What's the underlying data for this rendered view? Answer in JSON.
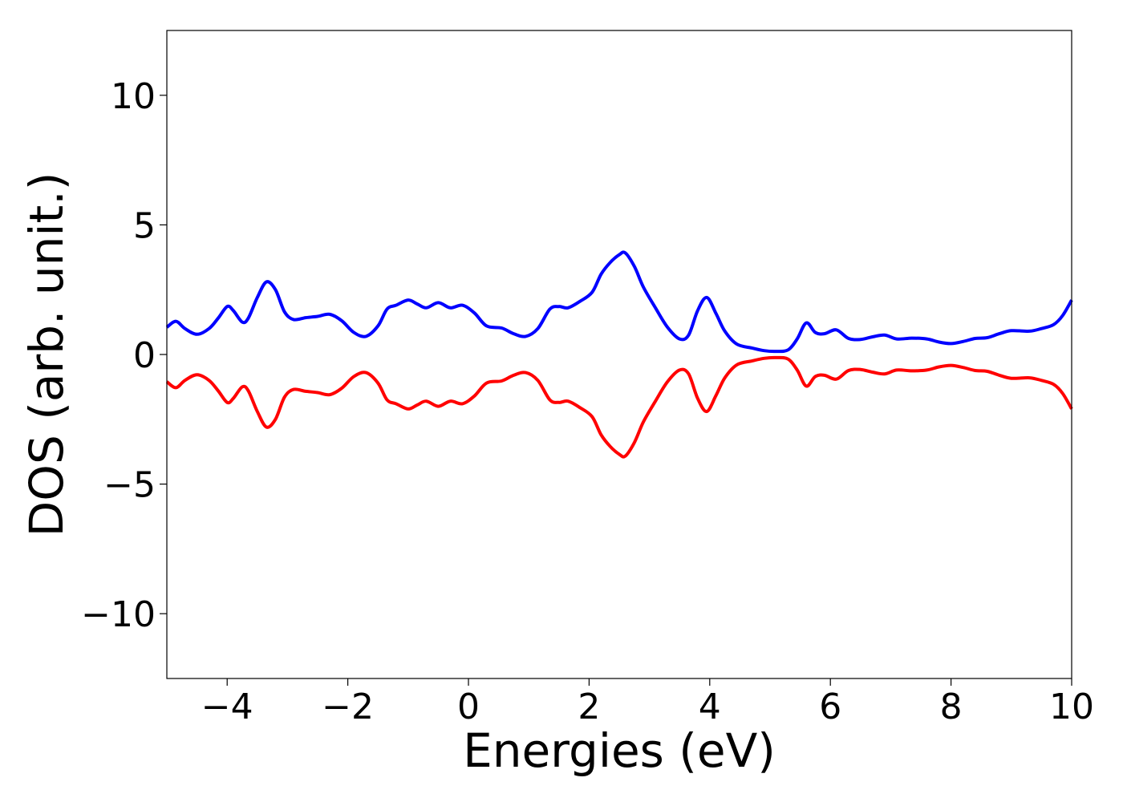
{
  "chart_data": {
    "type": "line",
    "title": "",
    "xlabel": "Energies (eV)",
    "ylabel": "DOS (arb. unit.)",
    "xlim": [
      -5,
      10
    ],
    "ylim": [
      -12.5,
      12.5
    ],
    "xticks": [
      {
        "value": -4,
        "label": "−4"
      },
      {
        "value": -2,
        "label": "−2"
      },
      {
        "value": 0,
        "label": "0"
      },
      {
        "value": 2,
        "label": "2"
      },
      {
        "value": 4,
        "label": "4"
      },
      {
        "value": 6,
        "label": "6"
      },
      {
        "value": 8,
        "label": "8"
      },
      {
        "value": 10,
        "label": "10"
      }
    ],
    "yticks": [
      {
        "value": 10,
        "label": "10"
      },
      {
        "value": 5,
        "label": "5"
      },
      {
        "value": 0,
        "label": "0"
      },
      {
        "value": -5,
        "label": "−5"
      },
      {
        "value": -10,
        "label": "−10"
      }
    ],
    "grid": false,
    "legend": "none",
    "series": [
      {
        "color": "#0000ff",
        "points": [
          [
            -5.0,
            1.05
          ],
          [
            -4.85,
            1.28
          ],
          [
            -4.7,
            1.0
          ],
          [
            -4.5,
            0.78
          ],
          [
            -4.3,
            1.0
          ],
          [
            -4.15,
            1.4
          ],
          [
            -4.0,
            1.85
          ],
          [
            -3.9,
            1.7
          ],
          [
            -3.75,
            1.25
          ],
          [
            -3.65,
            1.4
          ],
          [
            -3.5,
            2.2
          ],
          [
            -3.35,
            2.8
          ],
          [
            -3.2,
            2.5
          ],
          [
            -3.05,
            1.65
          ],
          [
            -2.9,
            1.35
          ],
          [
            -2.7,
            1.42
          ],
          [
            -2.5,
            1.47
          ],
          [
            -2.3,
            1.55
          ],
          [
            -2.1,
            1.3
          ],
          [
            -1.9,
            0.85
          ],
          [
            -1.7,
            0.7
          ],
          [
            -1.5,
            1.1
          ],
          [
            -1.35,
            1.75
          ],
          [
            -1.2,
            1.9
          ],
          [
            -1.0,
            2.1
          ],
          [
            -0.85,
            1.95
          ],
          [
            -0.7,
            1.8
          ],
          [
            -0.5,
            2.0
          ],
          [
            -0.3,
            1.8
          ],
          [
            -0.1,
            1.9
          ],
          [
            0.1,
            1.6
          ],
          [
            0.3,
            1.1
          ],
          [
            0.55,
            1.02
          ],
          [
            0.75,
            0.8
          ],
          [
            0.95,
            0.7
          ],
          [
            1.15,
            1.0
          ],
          [
            1.35,
            1.75
          ],
          [
            1.5,
            1.85
          ],
          [
            1.65,
            1.8
          ],
          [
            1.85,
            2.05
          ],
          [
            2.05,
            2.4
          ],
          [
            2.2,
            3.1
          ],
          [
            2.35,
            3.55
          ],
          [
            2.5,
            3.85
          ],
          [
            2.6,
            3.92
          ],
          [
            2.75,
            3.4
          ],
          [
            2.9,
            2.6
          ],
          [
            3.1,
            1.8
          ],
          [
            3.3,
            1.05
          ],
          [
            3.5,
            0.6
          ],
          [
            3.65,
            0.75
          ],
          [
            3.8,
            1.7
          ],
          [
            3.95,
            2.2
          ],
          [
            4.1,
            1.6
          ],
          [
            4.25,
            0.9
          ],
          [
            4.45,
            0.4
          ],
          [
            4.7,
            0.25
          ],
          [
            4.9,
            0.15
          ],
          [
            5.1,
            0.12
          ],
          [
            5.3,
            0.18
          ],
          [
            5.45,
            0.6
          ],
          [
            5.6,
            1.22
          ],
          [
            5.75,
            0.85
          ],
          [
            5.9,
            0.8
          ],
          [
            6.1,
            0.95
          ],
          [
            6.3,
            0.62
          ],
          [
            6.5,
            0.58
          ],
          [
            6.7,
            0.68
          ],
          [
            6.9,
            0.75
          ],
          [
            7.1,
            0.6
          ],
          [
            7.35,
            0.63
          ],
          [
            7.6,
            0.6
          ],
          [
            7.8,
            0.48
          ],
          [
            8.0,
            0.42
          ],
          [
            8.2,
            0.5
          ],
          [
            8.4,
            0.62
          ],
          [
            8.6,
            0.65
          ],
          [
            8.8,
            0.8
          ],
          [
            9.0,
            0.92
          ],
          [
            9.3,
            0.9
          ],
          [
            9.5,
            1.0
          ],
          [
            9.7,
            1.15
          ],
          [
            9.85,
            1.5
          ],
          [
            10.0,
            2.1
          ]
        ]
      },
      {
        "color": "#ff0000",
        "points": [
          [
            -5.0,
            -1.05
          ],
          [
            -4.85,
            -1.28
          ],
          [
            -4.7,
            -1.0
          ],
          [
            -4.5,
            -0.78
          ],
          [
            -4.3,
            -1.0
          ],
          [
            -4.15,
            -1.4
          ],
          [
            -4.0,
            -1.85
          ],
          [
            -3.9,
            -1.7
          ],
          [
            -3.75,
            -1.25
          ],
          [
            -3.65,
            -1.4
          ],
          [
            -3.5,
            -2.2
          ],
          [
            -3.35,
            -2.8
          ],
          [
            -3.2,
            -2.5
          ],
          [
            -3.05,
            -1.65
          ],
          [
            -2.9,
            -1.35
          ],
          [
            -2.7,
            -1.42
          ],
          [
            -2.5,
            -1.47
          ],
          [
            -2.3,
            -1.55
          ],
          [
            -2.1,
            -1.3
          ],
          [
            -1.9,
            -0.85
          ],
          [
            -1.7,
            -0.7
          ],
          [
            -1.5,
            -1.1
          ],
          [
            -1.35,
            -1.75
          ],
          [
            -1.2,
            -1.9
          ],
          [
            -1.0,
            -2.1
          ],
          [
            -0.85,
            -1.95
          ],
          [
            -0.7,
            -1.8
          ],
          [
            -0.5,
            -2.0
          ],
          [
            -0.3,
            -1.8
          ],
          [
            -0.1,
            -1.9
          ],
          [
            0.1,
            -1.6
          ],
          [
            0.3,
            -1.1
          ],
          [
            0.55,
            -1.02
          ],
          [
            0.75,
            -0.8
          ],
          [
            0.95,
            -0.7
          ],
          [
            1.15,
            -1.0
          ],
          [
            1.35,
            -1.75
          ],
          [
            1.5,
            -1.85
          ],
          [
            1.65,
            -1.8
          ],
          [
            1.85,
            -2.05
          ],
          [
            2.05,
            -2.4
          ],
          [
            2.2,
            -3.1
          ],
          [
            2.35,
            -3.55
          ],
          [
            2.5,
            -3.85
          ],
          [
            2.6,
            -3.92
          ],
          [
            2.75,
            -3.4
          ],
          [
            2.9,
            -2.6
          ],
          [
            3.1,
            -1.8
          ],
          [
            3.3,
            -1.05
          ],
          [
            3.5,
            -0.6
          ],
          [
            3.65,
            -0.75
          ],
          [
            3.8,
            -1.7
          ],
          [
            3.95,
            -2.2
          ],
          [
            4.1,
            -1.6
          ],
          [
            4.25,
            -0.9
          ],
          [
            4.45,
            -0.4
          ],
          [
            4.7,
            -0.25
          ],
          [
            4.9,
            -0.15
          ],
          [
            5.1,
            -0.12
          ],
          [
            5.3,
            -0.18
          ],
          [
            5.45,
            -0.6
          ],
          [
            5.6,
            -1.22
          ],
          [
            5.75,
            -0.85
          ],
          [
            5.9,
            -0.8
          ],
          [
            6.1,
            -0.95
          ],
          [
            6.3,
            -0.62
          ],
          [
            6.5,
            -0.58
          ],
          [
            6.7,
            -0.68
          ],
          [
            6.9,
            -0.75
          ],
          [
            7.1,
            -0.6
          ],
          [
            7.35,
            -0.63
          ],
          [
            7.6,
            -0.6
          ],
          [
            7.8,
            -0.48
          ],
          [
            8.0,
            -0.42
          ],
          [
            8.2,
            -0.5
          ],
          [
            8.4,
            -0.62
          ],
          [
            8.6,
            -0.65
          ],
          [
            8.8,
            -0.8
          ],
          [
            9.0,
            -0.92
          ],
          [
            9.3,
            -0.9
          ],
          [
            9.5,
            -1.0
          ],
          [
            9.7,
            -1.15
          ],
          [
            9.85,
            -1.5
          ],
          [
            10.0,
            -2.1
          ]
        ]
      }
    ]
  }
}
